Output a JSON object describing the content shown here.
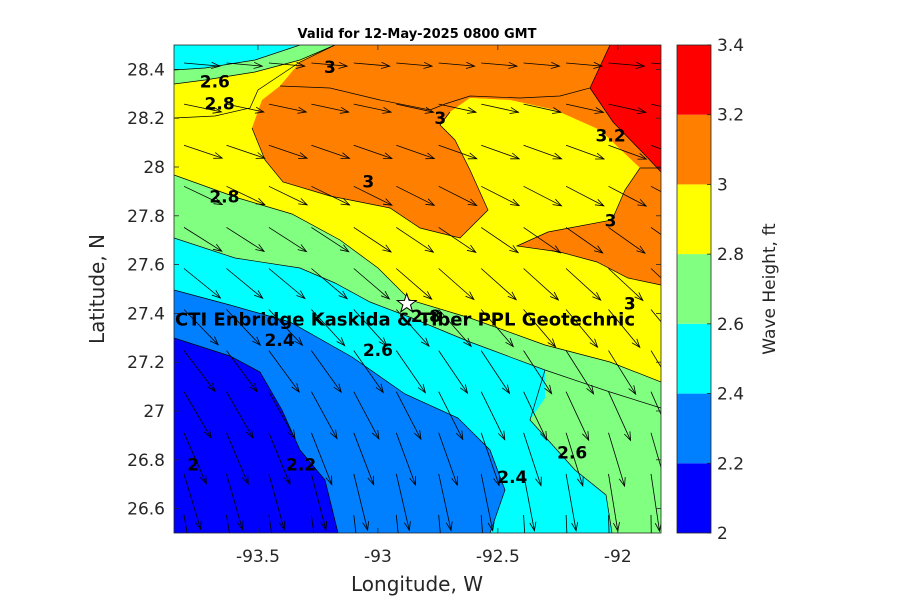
{
  "chart_data": {
    "type": "heatmap",
    "title": "Valid for 12-May-2025 0800 GMT",
    "xlabel": "Longitude, W",
    "ylabel": "Latitude, N",
    "colorbar_label": "Wave Height, ft",
    "xlim": [
      -93.85,
      -91.82
    ],
    "ylim": [
      26.5,
      28.5
    ],
    "xticks": [
      "-93.5",
      "-93",
      "-92.5",
      "-92"
    ],
    "xtick_values": [
      -93.5,
      -93,
      -92.5,
      -92
    ],
    "yticks": [
      "26.6",
      "26.8",
      "27",
      "27.2",
      "27.4",
      "27.6",
      "27.8",
      "28",
      "28.2",
      "28.4"
    ],
    "ytick_values": [
      26.6,
      26.8,
      27.0,
      27.2,
      27.4,
      27.6,
      27.8,
      28.0,
      28.2,
      28.4
    ],
    "colorbar": {
      "levels": [
        2,
        2.2,
        2.4,
        2.6,
        2.8,
        3,
        3.2,
        3.4
      ],
      "tick_labels": [
        "2",
        "2.2",
        "2.4",
        "2.6",
        "2.8",
        "3",
        "3.2",
        "3.4"
      ],
      "colors": [
        "#0000ff",
        "#0080ff",
        "#00ffff",
        "#80ff80",
        "#ffff00",
        "#ff8000",
        "#ff0000"
      ]
    },
    "contour_labels": [
      {
        "text": "2.6",
        "lon": -93.68,
        "lat": 28.35
      },
      {
        "text": "2.8",
        "lon": -93.66,
        "lat": 28.26
      },
      {
        "text": "3",
        "lon": -93.2,
        "lat": 28.41
      },
      {
        "text": "3",
        "lon": -92.74,
        "lat": 28.2
      },
      {
        "text": "3.2",
        "lon": -92.03,
        "lat": 28.13
      },
      {
        "text": "3",
        "lon": -93.04,
        "lat": 27.94
      },
      {
        "text": "2.8",
        "lon": -93.64,
        "lat": 27.88
      },
      {
        "text": "3",
        "lon": -92.03,
        "lat": 27.78
      },
      {
        "text": "3",
        "lon": -91.95,
        "lat": 27.44
      },
      {
        "text": "2.8",
        "lon": -92.8,
        "lat": 27.39
      },
      {
        "text": "2.6",
        "lon": -93.0,
        "lat": 27.25
      },
      {
        "text": "2.4",
        "lon": -93.41,
        "lat": 27.29
      },
      {
        "text": "2.6",
        "lon": -92.19,
        "lat": 26.83
      },
      {
        "text": "2.4",
        "lon": -92.44,
        "lat": 26.73
      },
      {
        "text": "2.2",
        "lon": -93.32,
        "lat": 26.78
      },
      {
        "text": "2",
        "lon": -93.77,
        "lat": 26.78
      }
    ],
    "site": {
      "label": "CTI Enbridge  Kaskida & Tiber PPL Geotechnic",
      "lon": -92.88,
      "lat": 27.44
    }
  }
}
